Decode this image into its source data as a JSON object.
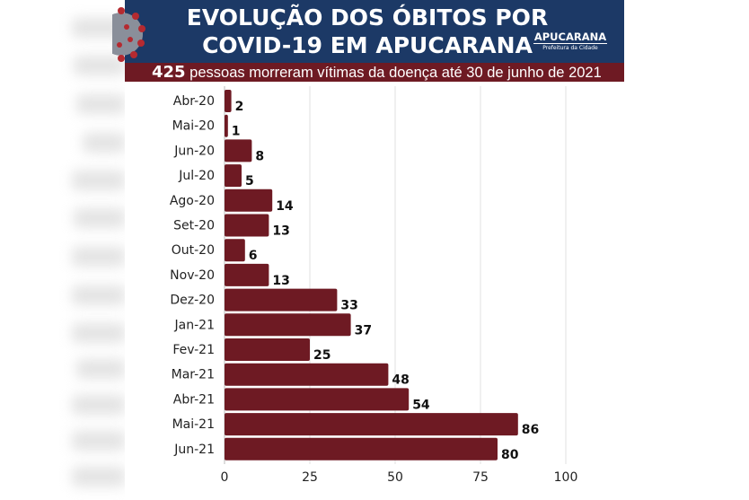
{
  "header": {
    "title_line1": "EVOLUÇÃO DOS ÓBITOS POR",
    "title_line2": "COVID-19 EM APUCARANA",
    "logo_name": "APUCARANA",
    "logo_sub": "Prefeitura da Cidade",
    "subtitle_count": "425",
    "subtitle_text": " pessoas morreram vítimas da doença até 30 de junho de 2021"
  },
  "colors": {
    "bar": "#6e1a23",
    "header": "#1c3966",
    "strip": "#6e1a23"
  },
  "chart_data": {
    "type": "bar",
    "orientation": "horizontal",
    "categories": [
      "Abr-20",
      "Mai-20",
      "Jun-20",
      "Jul-20",
      "Ago-20",
      "Set-20",
      "Out-20",
      "Nov-20",
      "Dez-20",
      "Jan-21",
      "Fev-21",
      "Mar-21",
      "Abr-21",
      "Mai-21",
      "Jun-21"
    ],
    "values": [
      2,
      1,
      8,
      5,
      14,
      13,
      6,
      13,
      33,
      37,
      25,
      48,
      54,
      86,
      80
    ],
    "xlim": [
      0,
      100
    ],
    "xticks": [
      0,
      25,
      50,
      75,
      100
    ],
    "grid": true,
    "data_labels": true
  }
}
